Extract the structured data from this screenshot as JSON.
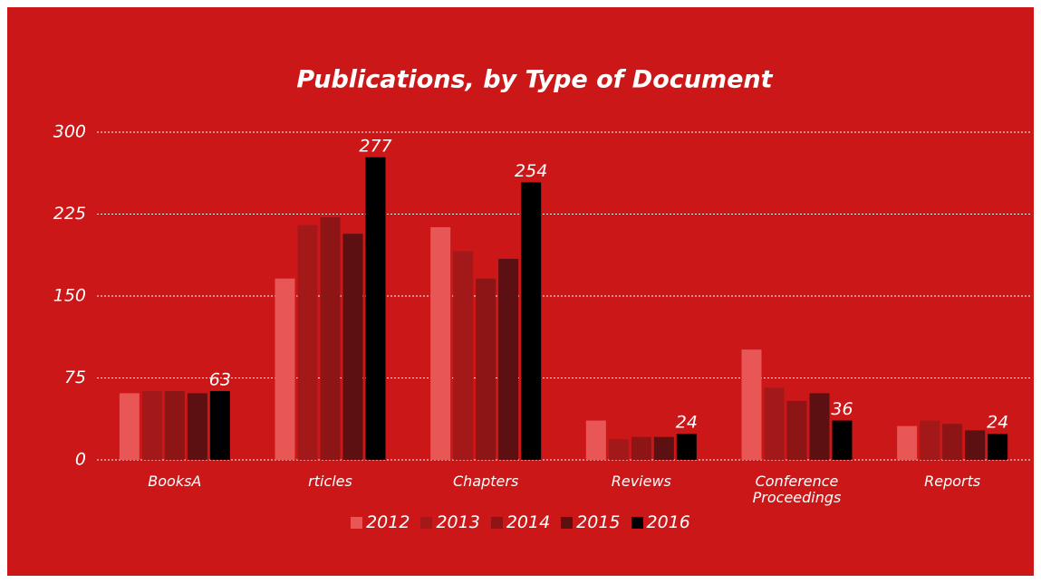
{
  "chart_data": {
    "type": "bar",
    "title": "Publications, by Type of Document",
    "categories": [
      "BooksA",
      "rticles",
      "Chapters",
      "Reviews",
      "Conference Proceedings",
      "Reports"
    ],
    "series": [
      {
        "name": "2012",
        "color": "#e85656",
        "values": [
          61,
          166,
          213,
          36,
          101,
          31
        ]
      },
      {
        "name": "2013",
        "color": "#a3191a",
        "values": [
          63,
          215,
          191,
          19,
          66,
          36
        ]
      },
      {
        "name": "2014",
        "color": "#8e1516",
        "values": [
          63,
          222,
          166,
          21,
          54,
          33
        ]
      },
      {
        "name": "2015",
        "color": "#5c1012",
        "values": [
          61,
          207,
          184,
          21,
          61,
          27
        ]
      },
      {
        "name": "2016",
        "color": "#000000",
        "values": [
          63,
          277,
          254,
          24,
          36,
          24
        ],
        "show_labels": true
      }
    ],
    "ylim": [
      0,
      300
    ],
    "yticks": [
      0,
      75,
      150,
      225,
      300
    ],
    "grid": true,
    "legend": "bottom"
  }
}
